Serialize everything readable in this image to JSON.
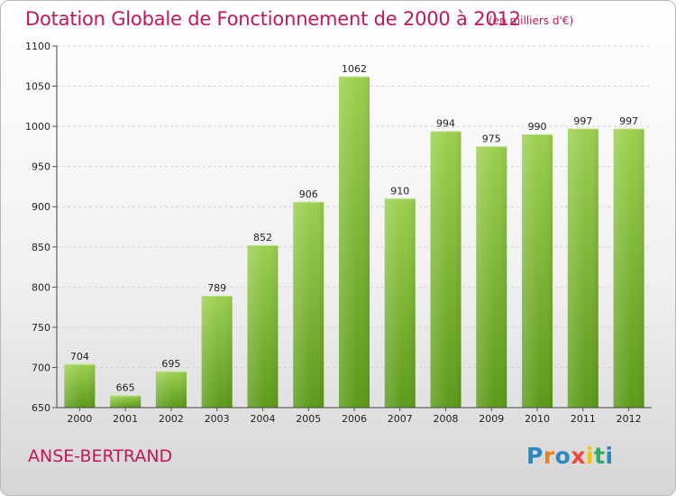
{
  "title": "Dotation Globale de Fonctionnement de 2000 à 2012",
  "unit_note": "(en milliers d'€)",
  "commune": "ANSE-BERTRAND",
  "logo": {
    "letters": [
      "P",
      "r",
      "o",
      "x",
      "i",
      "t",
      "i"
    ],
    "colors": [
      "#2e86c1",
      "#e67e22",
      "#2e86c1",
      "#e74c3c",
      "#f1c40f",
      "#27ae60",
      "#2e86c1"
    ]
  },
  "colors": {
    "title": "#c2185b",
    "bar_top": "#9ccf4f",
    "bar_bottom": "#5c9a1a"
  },
  "chart_data": {
    "type": "bar",
    "categories": [
      "2000",
      "2001",
      "2002",
      "2003",
      "2004",
      "2005",
      "2006",
      "2007",
      "2008",
      "2009",
      "2010",
      "2011",
      "2012"
    ],
    "values": [
      704,
      665,
      695,
      789,
      852,
      906,
      1062,
      910,
      994,
      975,
      990,
      997,
      997
    ],
    "ylim": [
      650,
      1100
    ],
    "yticks": [
      650,
      700,
      750,
      800,
      850,
      900,
      950,
      1000,
      1050,
      1100
    ],
    "grid": true
  }
}
